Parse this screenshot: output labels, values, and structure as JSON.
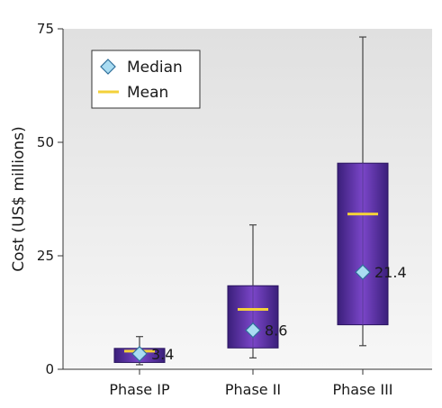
{
  "chart_data": {
    "type": "box",
    "title": "",
    "xlabel": "",
    "ylabel": "Cost (US$ millions)",
    "ylim": [
      0,
      75
    ],
    "yticks": [
      0,
      25,
      50,
      75
    ],
    "grid": false,
    "legend": {
      "placement": "top-left",
      "entries": [
        {
          "label": "Median",
          "marker": "diamond"
        },
        {
          "label": "Mean",
          "marker": "line"
        }
      ]
    },
    "categories": [
      "Phase IP",
      "Phase II",
      "Phase III"
    ],
    "series": [
      {
        "category": "Phase IP",
        "whisker_low": 1,
        "q1": 1.5,
        "median": 3.4,
        "mean": 4.0,
        "q3": 4.6,
        "whisker_high": 7.2,
        "median_label": "3.4"
      },
      {
        "category": "Phase II",
        "whisker_low": 2.5,
        "q1": 4.7,
        "median": 8.6,
        "mean": 13.2,
        "q3": 18.4,
        "whisker_high": 31.8,
        "median_label": "8.6"
      },
      {
        "category": "Phase III",
        "whisker_low": 5.2,
        "q1": 9.8,
        "median": 21.4,
        "mean": 34.2,
        "q3": 45.4,
        "whisker_high": 73.2,
        "median_label": "21.4"
      }
    ],
    "colors": {
      "box_top": "#3a1f7a",
      "box_mid": "#7b46c9",
      "box_bottom": "#3a1f7a",
      "mean": "#f3d13a",
      "median_fill": "#a9dcf2",
      "median_stroke": "#2f6f9a",
      "whisker": "#444444",
      "plot_bg_top": "#e0e0e0",
      "plot_bg_bottom": "#f7f7f7"
    }
  }
}
